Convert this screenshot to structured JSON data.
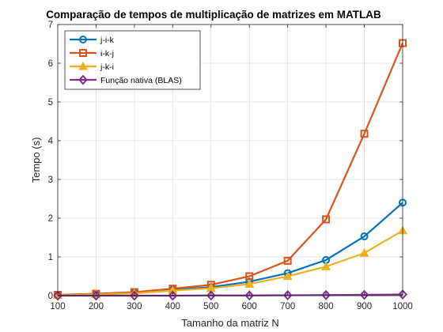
{
  "chart_data": {
    "type": "line",
    "title": "Comparação de tempos de multiplicação de matrizes em MATLAB",
    "xlabel": "Tamanho da matriz N",
    "ylabel": "Tempo (s)",
    "xlim": [
      100,
      1000
    ],
    "ylim": [
      0,
      7
    ],
    "xticks": [
      100,
      200,
      300,
      400,
      500,
      600,
      700,
      800,
      900,
      1000
    ],
    "yticks": [
      0,
      1,
      2,
      3,
      4,
      5,
      6,
      7
    ],
    "grid": true,
    "legend_position": "top-left",
    "x": [
      100,
      200,
      300,
      400,
      500,
      600,
      700,
      800,
      900,
      1000
    ],
    "series": [
      {
        "name": "j-i-k",
        "marker": "circle",
        "color": "#0072BD",
        "values": [
          0.01,
          0.03,
          0.07,
          0.15,
          0.22,
          0.36,
          0.58,
          0.92,
          1.53,
          2.4
        ]
      },
      {
        "name": "i-k-j",
        "marker": "square",
        "color": "#D95319",
        "values": [
          0.02,
          0.05,
          0.09,
          0.18,
          0.28,
          0.5,
          0.9,
          1.97,
          4.18,
          6.52
        ]
      },
      {
        "name": "j-k-i",
        "marker": "triangle",
        "color": "#EDB120",
        "values": [
          0.01,
          0.03,
          0.06,
          0.13,
          0.19,
          0.3,
          0.5,
          0.75,
          1.1,
          1.68
        ]
      },
      {
        "name": "Função nativa (BLAS)",
        "marker": "diamond",
        "color": "#7E2F8E",
        "values": [
          0.0,
          0.0,
          0.0,
          0.0,
          0.005,
          0.005,
          0.01,
          0.015,
          0.02,
          0.03
        ]
      }
    ]
  }
}
